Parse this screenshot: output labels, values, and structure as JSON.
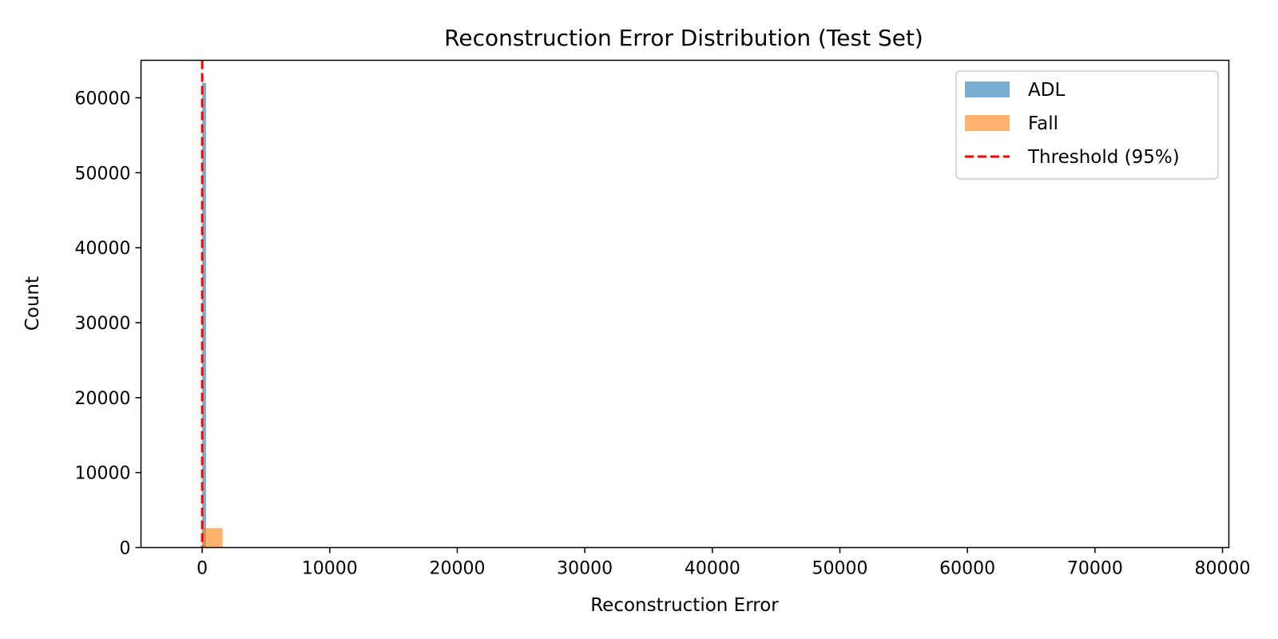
{
  "chart_data": {
    "type": "histogram",
    "title": "Reconstruction Error Distribution (Test Set)",
    "xlabel": "Reconstruction Error",
    "ylabel": "Count",
    "xlim": [
      -4800,
      80500
    ],
    "ylim": [
      0,
      65000
    ],
    "xticks": [
      0,
      10000,
      20000,
      30000,
      40000,
      50000,
      60000,
      70000,
      80000
    ],
    "yticks": [
      0,
      10000,
      20000,
      30000,
      40000,
      50000,
      60000
    ],
    "grid": false,
    "legend_position": "top-right",
    "series": [
      {
        "name": "ADL",
        "color": "#1f77b4",
        "alpha": 0.6,
        "bins": [
          {
            "x0": 0,
            "x1": 300,
            "count": 62000
          }
        ]
      },
      {
        "name": "Fall",
        "color": "#ff7f0e",
        "alpha": 0.6,
        "bins": [
          {
            "x0": 0,
            "x1": 1600,
            "count": 2600
          }
        ]
      }
    ],
    "threshold": {
      "name": "Threshold (95%)",
      "x": 0,
      "color": "#ff0000",
      "style": "dashed"
    }
  }
}
